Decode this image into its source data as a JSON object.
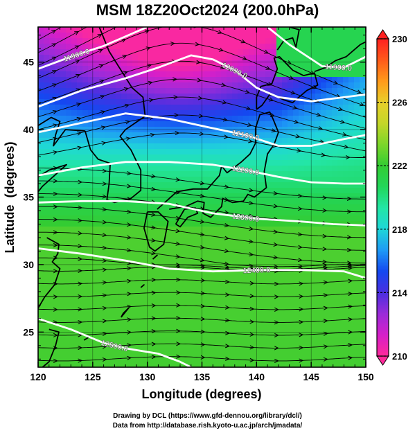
{
  "title": "MSM 18Z20Oct2024 (200.0hPa)",
  "xaxis": {
    "label": "Longitude (degrees)",
    "range": [
      120,
      150
    ],
    "ticks": [
      "120",
      "125",
      "130",
      "135",
      "140",
      "145",
      "150"
    ]
  },
  "yaxis": {
    "label": "Latitude  (degrees)",
    "range": [
      22.4,
      47.6
    ],
    "ticks": [
      "25",
      "30",
      "35",
      "40",
      "45"
    ]
  },
  "colorbar": {
    "range": [
      210,
      230
    ],
    "ticks": [
      "210",
      "214",
      "218",
      "222",
      "226",
      "230"
    ],
    "colors": [
      "#ff2a9a",
      "#d61fc9",
      "#9a2bd9",
      "#4a2fe0",
      "#1448f0",
      "#1e9af5",
      "#1fd6d8",
      "#23e6a6",
      "#22d65a",
      "#33cc33",
      "#7cd62a",
      "#c4d62a",
      "#e8cf2a",
      "#ff9a1a",
      "#ff5a1a",
      "#ff2020"
    ]
  },
  "contours": [
    {
      "label": "11900.0",
      "points": [
        [
          120,
          44.5
        ],
        [
          123,
          45.4
        ],
        [
          126,
          46.2
        ],
        [
          130,
          47.6
        ]
      ]
    },
    {
      "label": "11900.0",
      "points": [
        [
          141,
          47.6
        ],
        [
          143,
          46.3
        ],
        [
          146,
          44.7
        ],
        [
          148,
          44.6
        ],
        [
          150,
          45.4
        ]
      ]
    },
    {
      "label": "12000.0",
      "points": [
        [
          120,
          41.7
        ],
        [
          124,
          42.9
        ],
        [
          128,
          43.8
        ],
        [
          131,
          44.6
        ],
        [
          134,
          45.5
        ],
        [
          136,
          45.2
        ],
        [
          138,
          44.4
        ],
        [
          140,
          43.1
        ],
        [
          142,
          42.4
        ],
        [
          145,
          42.1
        ],
        [
          150,
          42.6
        ]
      ]
    },
    {
      "label": "12100.0",
      "points": [
        [
          120,
          39.8
        ],
        [
          124,
          40.5
        ],
        [
          128,
          41.2
        ],
        [
          132,
          40.8
        ],
        [
          136,
          40.1
        ],
        [
          139,
          39.6
        ],
        [
          142,
          38.8
        ],
        [
          145,
          38.8
        ],
        [
          148,
          39.3
        ],
        [
          150,
          39.6
        ]
      ]
    },
    {
      "label": "12200.0",
      "points": [
        [
          120,
          36.6
        ],
        [
          124,
          37.2
        ],
        [
          128,
          37.6
        ],
        [
          132,
          37.6
        ],
        [
          136,
          37.4
        ],
        [
          139,
          37.0
        ],
        [
          142,
          36.5
        ],
        [
          145,
          36.1
        ],
        [
          148,
          36.0
        ],
        [
          150,
          36.0
        ]
      ]
    },
    {
      "label": "12300.0",
      "points": [
        [
          120,
          34.6
        ],
        [
          124,
          34.7
        ],
        [
          128,
          34.7
        ],
        [
          132,
          34.5
        ],
        [
          136,
          33.8
        ],
        [
          140,
          33.4
        ],
        [
          144,
          33.2
        ],
        [
          147,
          33.0
        ],
        [
          150,
          32.9
        ]
      ]
    },
    {
      "label": "12400.0",
      "points": [
        [
          120,
          31.2
        ],
        [
          124,
          30.8
        ],
        [
          128,
          30.3
        ],
        [
          132,
          29.7
        ],
        [
          136,
          29.5
        ],
        [
          140,
          29.6
        ],
        [
          144,
          29.6
        ],
        [
          148,
          29.5
        ],
        [
          150,
          29.0
        ]
      ]
    },
    {
      "label": "12500.0",
      "points": [
        [
          120,
          26.0
        ],
        [
          123,
          25.2
        ],
        [
          126,
          24.2
        ],
        [
          128,
          23.8
        ],
        [
          131,
          23.4
        ],
        [
          133,
          22.8
        ],
        [
          134,
          22.4
        ]
      ]
    }
  ],
  "footer": {
    "line1": "Drawing by DCL (https://www.gfd-dennou.org/library/dcl/)",
    "line2": "Data from http://database.rish.kyoto-u.ac.jp/arch/jmadata/"
  }
}
